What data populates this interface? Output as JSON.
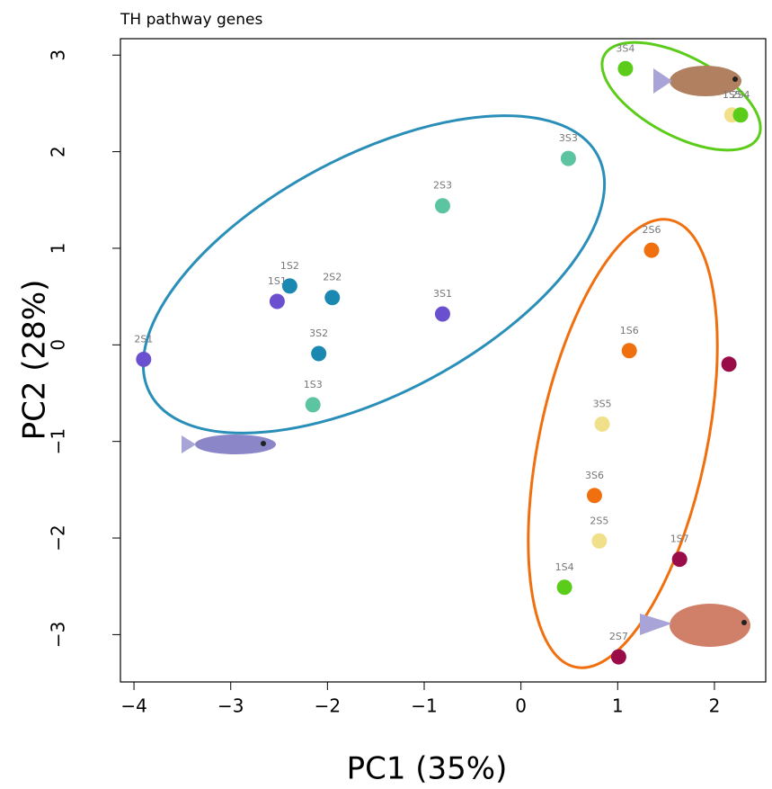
{
  "chart_data": {
    "type": "scatter",
    "title": "TH pathway genes",
    "x_label": "PC1 (35%)",
    "y_label": "PC2 (28%)",
    "labels": [
      "2S1",
      "1S1",
      "1S2",
      "2S2",
      "3S2",
      "1S3",
      "2S3",
      "3S3",
      "3S1",
      "3S4",
      "1S5",
      "2S4",
      "2S6",
      "1S6",
      null,
      "3S5",
      "3S6",
      "2S5",
      "1S7",
      "1S4",
      "2S7"
    ],
    "x": [
      -3.9,
      -2.52,
      -2.39,
      -1.95,
      -2.09,
      -2.15,
      -0.81,
      0.49,
      -0.81,
      1.08,
      2.18,
      2.27,
      1.35,
      1.12,
      2.15,
      0.84,
      0.76,
      0.81,
      1.64,
      0.45,
      1.01
    ],
    "values": [
      -0.15,
      0.45,
      0.61,
      0.49,
      -0.09,
      -0.62,
      1.44,
      1.93,
      0.32,
      2.86,
      2.38,
      2.38,
      0.98,
      -0.06,
      -0.2,
      -0.82,
      -1.56,
      -2.03,
      -2.22,
      -2.51,
      -3.23
    ],
    "colors": [
      "#6a4fcf",
      "#6a4fcf",
      "#1a88b0",
      "#1a88b0",
      "#1a88b0",
      "#5cc4a0",
      "#5cc4a0",
      "#5cc4a0",
      "#6a4fcf",
      "#5ccc1a",
      "#f0e08a",
      "#5ccc1a",
      "#f07010",
      "#f07010",
      "#9a0c48",
      "#f0e08a",
      "#f07010",
      "#f0e08a",
      "#9a0c48",
      "#5ccc1a",
      "#9a0c48"
    ],
    "xlim": [
      -4.14,
      2.53
    ],
    "ylim": [
      -3.49,
      3.17
    ],
    "xticks": [
      {
        "value": -4,
        "label": "−4"
      },
      {
        "value": -3,
        "label": "−3"
      },
      {
        "value": -2,
        "label": "−2"
      },
      {
        "value": -1,
        "label": "−1"
      },
      0,
      1,
      2
    ],
    "yticks": [
      {
        "value": -3,
        "label": "−3"
      },
      {
        "value": -2,
        "label": "−2"
      },
      {
        "value": -1,
        "label": "−1"
      },
      0,
      1,
      2,
      3
    ]
  }
}
